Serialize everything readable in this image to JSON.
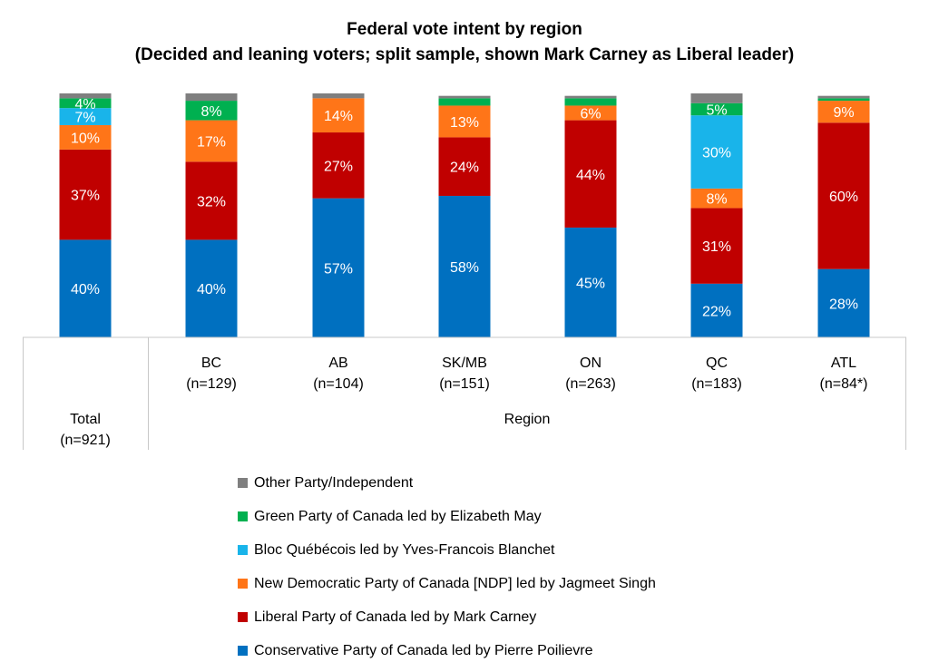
{
  "chart_data": {
    "type": "bar",
    "stacked": true,
    "title": "Federal vote intent by region",
    "subtitle": "(Decided and leaning voters; split sample, shown Mark Carney as Liberal leader)",
    "xlabel": "",
    "ylabel": "",
    "ylim": [
      0,
      100
    ],
    "categories": [
      {
        "label": "Total",
        "n": "(n=921)"
      },
      {
        "label": "BC",
        "n": "(n=129)"
      },
      {
        "label": "AB",
        "n": "(n=104)"
      },
      {
        "label": "SK/MB",
        "n": "(n=151)"
      },
      {
        "label": "ON",
        "n": "(n=263)"
      },
      {
        "label": "QC",
        "n": "(n=183)"
      },
      {
        "label": "ATL",
        "n": "(n=84*)"
      }
    ],
    "group_labels": [
      "Region"
    ],
    "series": [
      {
        "name": "Conservative Party of Canada led by Pierre Poilievre",
        "color": "#0070c0",
        "values": [
          40,
          40,
          57,
          58,
          45,
          22,
          28
        ],
        "labels": [
          "40%",
          "40%",
          "57%",
          "58%",
          "45%",
          "22%",
          "28%"
        ]
      },
      {
        "name": "Liberal Party of Canada led by Mark Carney",
        "color": "#c00000",
        "values": [
          37,
          32,
          27,
          24,
          44,
          31,
          60
        ],
        "labels": [
          "37%",
          "32%",
          "27%",
          "24%",
          "44%",
          "31%",
          "60%"
        ]
      },
      {
        "name": "New Democratic Party of Canada [NDP] led by Jagmeet Singh",
        "color": "#ff7518",
        "values": [
          10,
          17,
          14,
          13,
          6,
          8,
          9
        ],
        "labels": [
          "10%",
          "17%",
          "14%",
          "13%",
          "6%",
          "8%",
          "9%"
        ]
      },
      {
        "name": "Bloc Québécois led by Yves-Francois Blanchet",
        "color": "#19b4ea",
        "values": [
          7,
          0,
          0,
          0,
          0,
          30,
          0
        ],
        "labels": [
          "7%",
          "",
          "",
          "",
          "",
          "30%",
          ""
        ]
      },
      {
        "name": "Green Party of Canada led by Elizabeth May",
        "color": "#00b050",
        "values": [
          4,
          8,
          0,
          3,
          3,
          5,
          1
        ],
        "labels": [
          "4%",
          "8%",
          "",
          "",
          "",
          "5%",
          ""
        ]
      },
      {
        "name": "Other Party/Independent",
        "color": "#7f7f7f",
        "values": [
          2,
          3,
          2,
          1,
          1,
          4,
          1
        ],
        "labels": [
          "",
          "",
          "",
          "",
          "",
          "",
          ""
        ]
      }
    ],
    "legend_order": [
      5,
      4,
      3,
      2,
      1,
      0
    ],
    "legend_position": "bottom"
  }
}
